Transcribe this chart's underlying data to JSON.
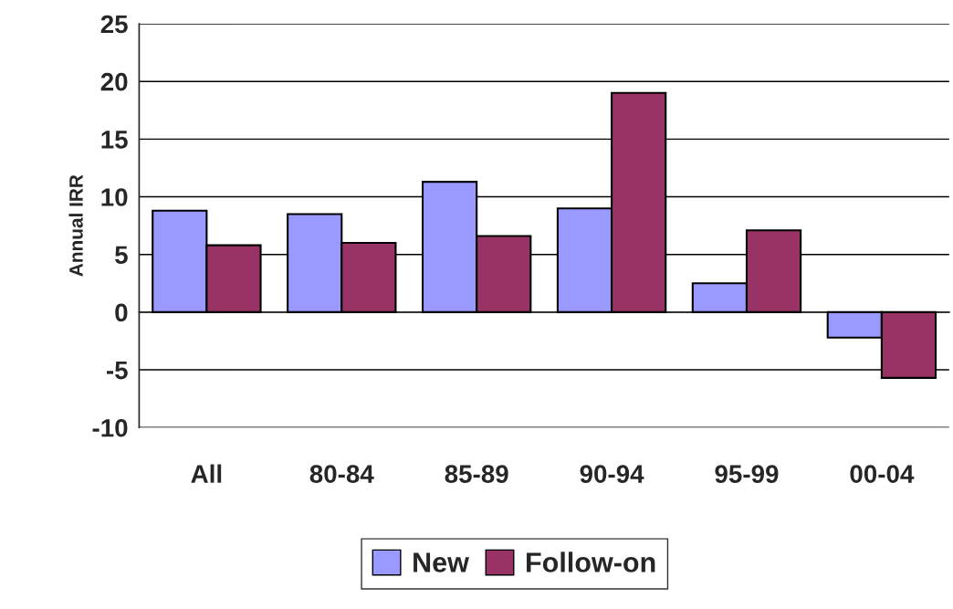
{
  "chart_data": {
    "type": "bar",
    "ylabel": "Annual IRR",
    "categories": [
      "All",
      "80-84",
      "85-89",
      "90-94",
      "95-99",
      "00-04"
    ],
    "series": [
      {
        "name": "New",
        "color": "#9999ff",
        "values": [
          8.8,
          8.5,
          11.3,
          9.0,
          2.5,
          -2.2
        ]
      },
      {
        "name": "Follow-on",
        "color": "#993366",
        "values": [
          5.8,
          6.0,
          6.6,
          19.0,
          7.1,
          -5.7
        ]
      }
    ],
    "ylim": [
      -10,
      25
    ],
    "yticks": [
      -10,
      -5,
      0,
      5,
      10,
      15,
      20,
      25
    ],
    "grid": "y",
    "legend": "bottom"
  }
}
